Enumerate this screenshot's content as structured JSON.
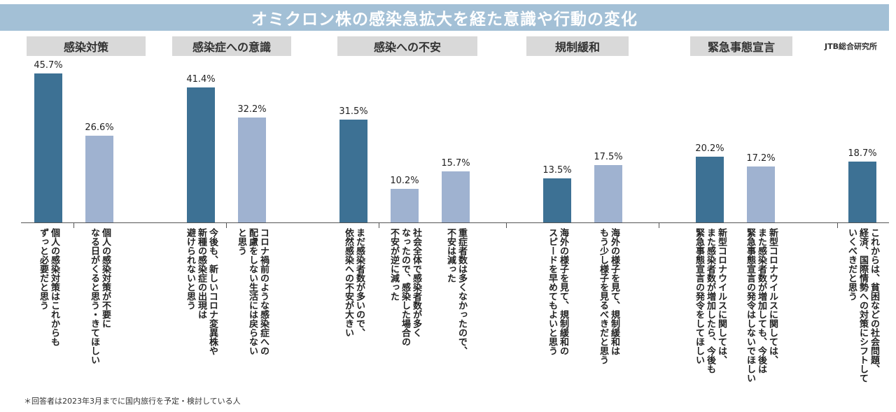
{
  "title": "オミクロン株の感染急拡大を経た意識や行動の変化",
  "source": "JTB総合研究所",
  "footnote": "＊回答者は2023年3月までに国内旅行を予定・検討している人",
  "colors": {
    "dark": "#3d7194",
    "light": "#9fb2d0",
    "header": "#a3c0d6",
    "group_bg": "#d9d9d9"
  },
  "groups": [
    {
      "label": "感染対策"
    },
    {
      "label": "感染症への意識"
    },
    {
      "label": "感染への不安"
    },
    {
      "label": "規制緩和"
    },
    {
      "label": "緊急事態宣言"
    }
  ],
  "chart_data": {
    "type": "bar",
    "ylim": [
      0,
      50
    ],
    "categories": [
      "個人の感染対策はこれからも\nずっと必要だと思う",
      "個人の感染対策が不要に\nなる日がくると思う・きてほしい",
      "今後も、新しいコロナ変異株や\n新種の感染症の出現は\n避けられないと思う",
      "コロナ禍前のような感染症への\n配慮をしない生活には戻らない\nと思う",
      "まだ感染者数が多いので、\n依然感染への不安が大きい",
      "社会全体で感染者数が多く\nなったので、感染した場合の\n不安が逆に減った",
      "重症者数は多くなかったので、\n不安は減った",
      "海外の様子を見て、規制緩和の\nスピードを早めてもよいと思う",
      "海外の様子を見て、規制緩和は\nもう少し様子を見るべきだと思う",
      "新型コロナウイルスに関しては、\nまた感染者数が増加したら、今後も\n緊急事態宣言の発令をしてほしい",
      "新型コロナウイルスに関しては、\nまた感染者数が増加しても、今後は\n緊急事態宣言の発令はしないでほしい",
      "これからは、貧困などの社会問題、\n経済、国際情勢への対策にシフトして\nいくべきだと思う"
    ],
    "values": [
      45.7,
      26.6,
      41.4,
      32.2,
      31.5,
      10.2,
      15.7,
      13.5,
      17.5,
      20.2,
      17.2,
      18.7
    ],
    "value_labels": [
      "45.7%",
      "26.6%",
      "41.4%",
      "32.2%",
      "31.5%",
      "10.2%",
      "15.7%",
      "13.5%",
      "17.5%",
      "20.2%",
      "17.2%",
      "18.7%"
    ],
    "shade": [
      "dark",
      "light",
      "dark",
      "light",
      "dark",
      "light",
      "light",
      "dark",
      "light",
      "dark",
      "light",
      "dark"
    ]
  }
}
